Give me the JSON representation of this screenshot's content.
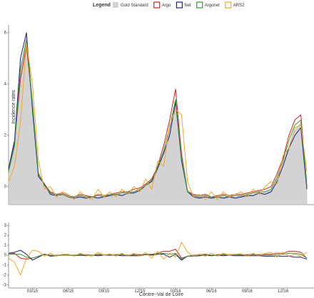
{
  "chart_data": [
    {
      "type": "line",
      "legend_title": "Legend",
      "y_label": "Incidence rates",
      "x": [
        1,
        1.5,
        2,
        2.5,
        3,
        3.5,
        4,
        4.5,
        5,
        5.5,
        6,
        6.5,
        7,
        7.5,
        8,
        8.5,
        9,
        9.5,
        10,
        10.5,
        11,
        11.5,
        12,
        12.5,
        13,
        13.5,
        14,
        14.5,
        15,
        15.5,
        16,
        16.5,
        17,
        17.5,
        18,
        18.5,
        19,
        19.5,
        20,
        20.5,
        21,
        21.5,
        22,
        22.5,
        23,
        23.5,
        24,
        24.5,
        25,
        25.5,
        26
      ],
      "xlim": [
        1,
        26.6
      ],
      "ylim": [
        -0.7,
        6.3
      ],
      "yticks": [
        0,
        2,
        4,
        6
      ],
      "series": [
        {
          "name": "Gold Standard",
          "color": "#d3d3d3",
          "area": true,
          "values": [
            0.5,
            1.5,
            4.5,
            5.9,
            3.5,
            0.6,
            0.0,
            -0.2,
            -0.3,
            -0.3,
            -0.4,
            -0.4,
            -0.4,
            -0.4,
            -0.4,
            -0.4,
            -0.4,
            -0.35,
            -0.3,
            -0.3,
            -0.2,
            -0.2,
            -0.1,
            0.0,
            0.2,
            0.6,
            1.2,
            2.2,
            3.2,
            1.5,
            -0.1,
            -0.3,
            -0.4,
            -0.4,
            -0.4,
            -0.4,
            -0.4,
            -0.4,
            -0.4,
            -0.35,
            -0.3,
            -0.3,
            -0.2,
            -0.2,
            -0.1,
            0.3,
            0.9,
            1.6,
            2.2,
            2.5,
            0.3
          ]
        },
        {
          "name": "Argo",
          "color": "#e41a1c",
          "values": [
            0.6,
            1.7,
            4.2,
            5.5,
            3.2,
            0.5,
            0.1,
            -0.2,
            -0.3,
            -0.25,
            -0.35,
            -0.4,
            -0.3,
            -0.35,
            -0.4,
            -0.3,
            -0.35,
            -0.3,
            -0.25,
            -0.2,
            -0.2,
            -0.1,
            -0.05,
            0.1,
            0.3,
            0.8,
            1.6,
            2.6,
            3.8,
            1.2,
            -0.2,
            -0.3,
            -0.35,
            -0.3,
            -0.4,
            -0.35,
            -0.3,
            -0.35,
            -0.3,
            -0.3,
            -0.25,
            -0.2,
            -0.15,
            -0.1,
            0.0,
            0.5,
            1.1,
            2.0,
            2.6,
            2.8,
            0.0
          ]
        },
        {
          "name": "Net",
          "color": "#1a1a9c",
          "values": [
            0.7,
            1.8,
            5.0,
            6.0,
            3.0,
            0.4,
            0.1,
            -0.3,
            -0.35,
            -0.3,
            -0.4,
            -0.45,
            -0.4,
            -0.45,
            -0.4,
            -0.45,
            -0.4,
            -0.35,
            -0.3,
            -0.35,
            -0.25,
            -0.25,
            -0.15,
            0.05,
            0.2,
            0.7,
            1.3,
            2.0,
            3.3,
            1.0,
            -0.2,
            -0.4,
            -0.45,
            -0.4,
            -0.45,
            -0.4,
            -0.45,
            -0.4,
            -0.45,
            -0.4,
            -0.35,
            -0.35,
            -0.25,
            -0.3,
            -0.2,
            0.2,
            0.8,
            1.5,
            2.0,
            2.3,
            -0.1
          ]
        },
        {
          "name": "Argonet",
          "color": "#2ca02c",
          "values": [
            0.6,
            1.6,
            4.6,
            5.7,
            3.2,
            0.5,
            0.05,
            -0.25,
            -0.3,
            -0.3,
            -0.4,
            -0.4,
            -0.35,
            -0.4,
            -0.4,
            -0.35,
            -0.4,
            -0.3,
            -0.3,
            -0.25,
            -0.2,
            -0.2,
            -0.1,
            0.05,
            0.25,
            0.75,
            1.4,
            2.3,
            3.4,
            1.1,
            -0.2,
            -0.35,
            -0.4,
            -0.35,
            -0.4,
            -0.4,
            -0.35,
            -0.4,
            -0.35,
            -0.35,
            -0.3,
            -0.25,
            -0.2,
            -0.2,
            -0.1,
            0.35,
            1.0,
            1.8,
            2.4,
            2.6,
            0.0
          ]
        },
        {
          "name": "ARS2",
          "color": "#f5a623",
          "values": [
            0.2,
            0.8,
            2.5,
            5.6,
            4.0,
            1.0,
            -0.1,
            0.0,
            -0.4,
            -0.2,
            -0.3,
            -0.5,
            -0.2,
            -0.4,
            -0.5,
            -0.1,
            -0.4,
            -0.2,
            -0.4,
            -0.1,
            -0.3,
            0.0,
            -0.2,
            0.3,
            -0.1,
            1.0,
            0.8,
            2.4,
            3.0,
            2.8,
            0.2,
            -0.4,
            -0.3,
            -0.5,
            -0.2,
            -0.5,
            -0.2,
            -0.4,
            -0.3,
            -0.2,
            -0.4,
            -0.1,
            -0.3,
            0.0,
            0.2,
            0.1,
            1.2,
            1.5,
            2.3,
            2.4,
            0.6
          ]
        }
      ]
    },
    {
      "type": "line",
      "x_label": "Centre−Val de Loire",
      "x": [
        1,
        1.5,
        2,
        2.5,
        3,
        3.5,
        4,
        4.5,
        5,
        5.5,
        6,
        6.5,
        7,
        7.5,
        8,
        8.5,
        9,
        9.5,
        10,
        10.5,
        11,
        11.5,
        12,
        12.5,
        13,
        13.5,
        14,
        14.5,
        15,
        15.5,
        16,
        16.5,
        17,
        17.5,
        18,
        18.5,
        19,
        19.5,
        20,
        20.5,
        21,
        21.5,
        22,
        22.5,
        23,
        23.5,
        24,
        24.5,
        25,
        25.5,
        26
      ],
      "xlim": [
        1,
        26.6
      ],
      "ylim": [
        -3.3,
        3.3
      ],
      "yticks": [
        -3,
        -2,
        -1,
        0,
        1,
        2,
        3
      ],
      "xticks": [
        {
          "value": 3,
          "label": "03/15"
        },
        {
          "value": 6,
          "label": "06/15"
        },
        {
          "value": 9,
          "label": "09/15"
        },
        {
          "value": 12,
          "label": "12/15"
        },
        {
          "value": 15,
          "label": "03/16"
        },
        {
          "value": 18,
          "label": "06/16"
        },
        {
          "value": 21,
          "label": "09/16"
        },
        {
          "value": 24,
          "label": "12/16"
        }
      ],
      "series": [
        {
          "name": "Argo",
          "color": "#e41a1c",
          "values": [
            0.1,
            0.2,
            -0.3,
            -0.4,
            -0.3,
            -0.1,
            0.1,
            0,
            0,
            0.05,
            0.05,
            0,
            0.1,
            0.05,
            0,
            0.1,
            0.05,
            0.05,
            0.05,
            0.1,
            0,
            0.1,
            0.05,
            0.1,
            0.1,
            0.2,
            0.4,
            0.4,
            0.6,
            -0.3,
            -0.1,
            0,
            0.05,
            0.1,
            0,
            0.05,
            0.1,
            0.05,
            0.1,
            0.05,
            0.05,
            0.1,
            0.05,
            0.1,
            0.1,
            0.2,
            0.2,
            0.4,
            0.4,
            0.3,
            -0.3
          ]
        },
        {
          "name": "Net",
          "color": "#1a1a9c",
          "values": [
            0.2,
            0.3,
            0.5,
            0.1,
            -0.5,
            -0.2,
            0.1,
            -0.1,
            -0.05,
            0,
            0,
            -0.05,
            0,
            -0.05,
            0,
            -0.05,
            0,
            0,
            0,
            -0.05,
            -0.05,
            -0.05,
            -0.05,
            0.05,
            0,
            0.1,
            0.1,
            -0.2,
            0.1,
            -0.5,
            -0.1,
            -0.1,
            -0.05,
            0,
            -0.05,
            0,
            -0.05,
            0,
            -0.05,
            -0.05,
            -0.05,
            -0.05,
            -0.05,
            -0.1,
            -0.1,
            -0.1,
            -0.1,
            -0.1,
            -0.2,
            -0.2,
            -0.4
          ]
        },
        {
          "name": "Argonet",
          "color": "#2ca02c",
          "values": [
            0.1,
            0.1,
            0.1,
            -0.2,
            -0.3,
            -0.1,
            0.05,
            -0.05,
            0,
            0,
            0,
            0,
            0.05,
            0,
            0,
            0.05,
            0,
            0.05,
            0,
            0.05,
            0,
            0,
            0,
            0.05,
            0.05,
            0.15,
            0.2,
            0.1,
            0.2,
            -0.4,
            -0.1,
            -0.05,
            0,
            0.05,
            0,
            0,
            0.05,
            0,
            0.05,
            0,
            0,
            0.05,
            0,
            0,
            0,
            0.05,
            0.1,
            0.2,
            0.2,
            0.1,
            -0.3
          ]
        },
        {
          "name": "ARS2",
          "color": "#f5a623",
          "values": [
            -0.3,
            -0.7,
            -2.0,
            -0.3,
            0.5,
            0.4,
            -0.1,
            0.2,
            -0.1,
            0.1,
            0.1,
            -0.1,
            0.2,
            0,
            -0.1,
            0.3,
            0,
            0.15,
            -0.1,
            0.2,
            -0.1,
            0.2,
            -0.1,
            0.3,
            -0.3,
            0.4,
            -0.4,
            0.2,
            -0.2,
            1.3,
            0.3,
            -0.1,
            0.1,
            -0.1,
            0.2,
            -0.1,
            0.2,
            0,
            0.1,
            0.15,
            -0.1,
            0.2,
            -0.1,
            0.2,
            0.3,
            -0.2,
            0.3,
            -0.1,
            0.1,
            -0.1,
            0.3
          ]
        }
      ]
    }
  ]
}
